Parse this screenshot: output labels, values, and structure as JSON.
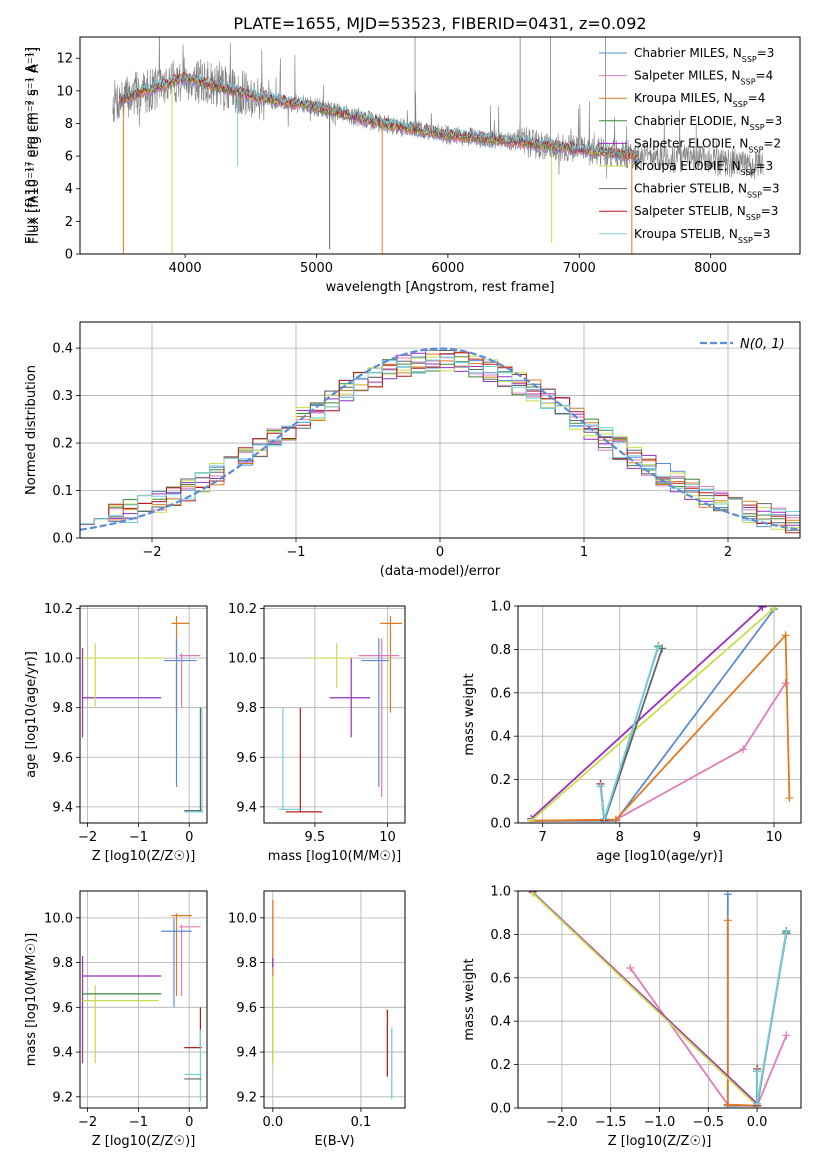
{
  "figure_title": "PLATE=1655, MJD=53523, FIBERID=0431, z=0.092",
  "colors": {
    "Chabrier MILES": "#5b8bd9",
    "Salpeter MILES": "#e17cba",
    "Kroupa MILES": "#e07a1f",
    "Chabrier ELODIE": "#3a8a3a",
    "Salpeter ELODIE": "#9b2fbf",
    "Kroupa ELODIE": "#c9dd4a",
    "Chabrier STELIB": "#666666",
    "Salpeter STELIB": "#b41e1e",
    "Kroupa STELIB": "#72d0de",
    "normal_curve": "#5b8bd9"
  },
  "chart_data": [
    {
      "id": "spectrum",
      "type": "line",
      "title": "PLATE=1655, MJD=53523, FIBERID=0431, z=0.092",
      "xlabel": "wavelength [Angstrom, rest frame]",
      "ylabel": "Flux [fλ10⁻¹⁷ erg cm⁻² s⁻¹ A⁻¹]",
      "xlim": [
        3200,
        8680
      ],
      "ylim": [
        0,
        13.3
      ],
      "xticks": [
        4000,
        5000,
        6000,
        7000,
        8000
      ],
      "yticks": [
        0,
        2,
        4,
        6,
        8,
        10,
        12
      ],
      "grid": false,
      "legend_placement": "upper right",
      "legend": [
        {
          "label": "Chabrier MILES, N",
          "sub": "SSP",
          "suffix": "=3",
          "color": "#5b8bd9"
        },
        {
          "label": "Salpeter MILES, N",
          "sub": "SSP",
          "suffix": "=4",
          "color": "#e17cba"
        },
        {
          "label": "Kroupa MILES, N",
          "sub": "SSP",
          "suffix": "=4",
          "color": "#e07a1f"
        },
        {
          "label": "Chabrier ELODIE, N",
          "sub": "SSP",
          "suffix": "=3",
          "color": "#3a8a3a"
        },
        {
          "label": "Salpeter ELODIE, N",
          "sub": "SSP",
          "suffix": "=2",
          "color": "#9b2fbf"
        },
        {
          "label": "Kroupa ELODIE, N",
          "sub": "SSP",
          "suffix": "=3",
          "color": "#c9dd4a"
        },
        {
          "label": "Chabrier STELIB, N",
          "sub": "SSP",
          "suffix": "=3",
          "color": "#666666"
        },
        {
          "label": "Salpeter STELIB, N",
          "sub": "SSP",
          "suffix": "=3",
          "color": "#b41e1e"
        },
        {
          "label": "Kroupa STELIB, N",
          "sub": "SSP",
          "suffix": "=3",
          "color": "#72d0de"
        }
      ],
      "continuum": [
        [
          3450,
          9.3
        ],
        [
          3700,
          10.0
        ],
        [
          4000,
          10.8
        ],
        [
          4500,
          9.7
        ],
        [
          5000,
          9.0
        ],
        [
          5500,
          8.0
        ],
        [
          6000,
          7.3
        ],
        [
          6500,
          6.9
        ],
        [
          7000,
          6.4
        ],
        [
          7500,
          6.0
        ],
        [
          8000,
          5.7
        ],
        [
          8400,
          5.4
        ]
      ],
      "data_range": [
        3450,
        8400
      ],
      "model_range": [
        3500,
        7450
      ],
      "dips": [
        {
          "x": 3530,
          "y": 0,
          "color": "#e07a1f"
        },
        {
          "x": 3900,
          "y": 0,
          "color": "#c9dd4a"
        },
        {
          "x": 4400,
          "y": 5.4,
          "color": "#72d0de"
        },
        {
          "x": 5100,
          "y": 0.3,
          "color": "#666666"
        },
        {
          "x": 5500,
          "y": 0,
          "color": "#e07a1f"
        },
        {
          "x": 6790,
          "y": 0.7,
          "color": "#c9dd4a"
        },
        {
          "x": 7400,
          "y": 0,
          "color": "#e07a1f"
        }
      ],
      "spikes": [
        {
          "x": 5750,
          "y": 13.3
        },
        {
          "x": 6550,
          "y": 13.3
        },
        {
          "x": 6780,
          "y": 13.3
        },
        {
          "x": 7200,
          "y": 13.3
        }
      ]
    },
    {
      "id": "residuals",
      "type": "histogram",
      "xlabel": "(data-model)/error",
      "ylabel": "Normed distribution",
      "xlim": [
        -2.5,
        2.5
      ],
      "ylim": [
        0,
        0.455
      ],
      "xticks": [
        -2,
        -1,
        0,
        1,
        2
      ],
      "yticks": [
        0.0,
        0.1,
        0.2,
        0.3,
        0.4
      ],
      "grid": true,
      "legend_placement": "upper right",
      "legend_label": "N(0, 1)",
      "bin_width": 0.1,
      "normal": {
        "mean": 0,
        "sigma": 1
      }
    },
    {
      "id": "age-vs-Z",
      "type": "errorbar",
      "xlabel": "Z [log10(Z/Z☉)]",
      "ylabel": "age [log10(age/yr)]",
      "xlim": [
        -2.15,
        0.35
      ],
      "ylim": [
        9.335,
        10.21
      ],
      "xticks": [
        -2,
        -1,
        0
      ],
      "yticks": [
        9.4,
        9.6,
        9.8,
        10.0,
        10.2
      ],
      "grid": true
    },
    {
      "id": "age-vs-mass",
      "type": "errorbar",
      "xlabel": "mass [log10(M/M☉)]",
      "ylabel": "",
      "xlim": [
        9.15,
        10.12
      ],
      "ylim": [
        9.335,
        10.21
      ],
      "xticks": [
        9.5,
        10.0
      ],
      "yticks": [
        9.4,
        9.6,
        9.8,
        10.0,
        10.2
      ],
      "grid": true
    },
    {
      "id": "weight-vs-age",
      "type": "line",
      "xlabel": "age [log10(age/yr)]",
      "ylabel": "mass weight",
      "xlim": [
        6.68,
        10.35
      ],
      "ylim": [
        0,
        1.0
      ],
      "xticks": [
        7,
        8,
        9,
        10
      ],
      "yticks": [
        0.0,
        0.2,
        0.4,
        0.6,
        0.8,
        1.0
      ],
      "grid": true,
      "series": [
        {
          "color": "#5b8bd9",
          "points": [
            [
              6.85,
              0.01
            ],
            [
              7.95,
              0.01
            ],
            [
              10.0,
              0.985
            ]
          ]
        },
        {
          "color": "#e17cba",
          "points": [
            [
              6.85,
              0.01
            ],
            [
              7.95,
              0.015
            ],
            [
              9.6,
              0.34
            ],
            [
              10.15,
              0.645
            ]
          ]
        },
        {
          "color": "#e07a1f",
          "points": [
            [
              6.85,
              0.01
            ],
            [
              7.95,
              0.015
            ],
            [
              10.15,
              0.865
            ],
            [
              10.2,
              0.115
            ]
          ]
        },
        {
          "color": "#3a8a3a",
          "points": [
            [
              7.75,
              0.18
            ],
            [
              7.8,
              0.01
            ],
            [
              8.5,
              0.815
            ]
          ]
        },
        {
          "color": "#9b2fbf",
          "points": [
            [
              6.85,
              0.02
            ],
            [
              9.85,
              0.995
            ]
          ]
        },
        {
          "color": "#c9dd4a",
          "points": [
            [
              6.85,
              0.01
            ],
            [
              10.0,
              0.99
            ]
          ]
        },
        {
          "color": "#666666",
          "points": [
            [
              7.75,
              0.17
            ],
            [
              7.8,
              0.01
            ],
            [
              8.55,
              0.805
            ]
          ]
        },
        {
          "color": "#b41e1e",
          "points": [
            [
              7.75,
              0.18
            ],
            [
              7.8,
              0.01
            ]
          ]
        },
        {
          "color": "#72d0de",
          "points": [
            [
              7.75,
              0.17
            ],
            [
              7.8,
              0.02
            ],
            [
              8.5,
              0.81
            ]
          ]
        }
      ]
    },
    {
      "id": "mass-vs-Z",
      "type": "errorbar",
      "xlabel": "Z [log10(Z/Z☉)]",
      "ylabel": "mass [log10(M/M☉)]",
      "xlim": [
        -2.15,
        0.35
      ],
      "ylim": [
        9.15,
        10.12
      ],
      "xticks": [
        -2,
        -1,
        0
      ],
      "yticks": [
        9.2,
        9.4,
        9.6,
        9.8,
        10.0
      ],
      "grid": true
    },
    {
      "id": "mass-vs-ebv",
      "type": "errorbar",
      "xlabel": "E(B-V)",
      "ylabel": "",
      "xlim": [
        -0.01,
        0.15
      ],
      "ylim": [
        9.15,
        10.12
      ],
      "xticks": [
        0.0,
        0.1
      ],
      "yticks": [
        9.2,
        9.4,
        9.6,
        9.8,
        10.0
      ],
      "grid": true,
      "markers": [
        {
          "x": 0.0,
          "y": 9.72,
          "yerr": 0.36,
          "color": "#e07a1f"
        },
        {
          "x": 0.0,
          "y": 9.8,
          "yerr": 0.02,
          "color": "#9b2fbf"
        },
        {
          "x": 0.0,
          "y": 9.54,
          "yerr": 0.2,
          "color": "#c9dd4a"
        },
        {
          "x": 0.13,
          "y": 9.44,
          "yerr": 0.15,
          "color": "#b41e1e"
        },
        {
          "x": 0.135,
          "y": 9.35,
          "yerr": 0.16,
          "color": "#72d0de"
        }
      ]
    },
    {
      "id": "weight-vs-Z",
      "type": "line",
      "xlabel": "Z [log10(Z/Z☉)]",
      "ylabel": "mass weight",
      "xlim": [
        -2.45,
        0.45
      ],
      "ylim": [
        0,
        1.0
      ],
      "xticks": [
        -2.0,
        -1.5,
        -1.0,
        -0.5,
        0.0
      ],
      "yticks": [
        0.0,
        0.2,
        0.4,
        0.6,
        0.8,
        1.0
      ],
      "grid": true,
      "series": [
        {
          "color": "#5b8bd9",
          "points": [
            [
              -0.3,
              0.985
            ],
            [
              -0.3,
              0.01
            ],
            [
              0.0,
              0.01
            ]
          ]
        },
        {
          "color": "#e17cba",
          "points": [
            [
              -1.3,
              0.645
            ],
            [
              -0.3,
              0.015
            ],
            [
              0.0,
              0.01
            ],
            [
              0.3,
              0.335
            ]
          ]
        },
        {
          "color": "#e07a1f",
          "points": [
            [
              -0.3,
              0.865
            ],
            [
              -0.3,
              0.015
            ],
            [
              0.0,
              0.01
            ]
          ]
        },
        {
          "color": "#3a8a3a",
          "points": [
            [
              0.0,
              0.18
            ],
            [
              0.0,
              0.01
            ],
            [
              0.3,
              0.815
            ]
          ]
        },
        {
          "color": "#9b2fbf",
          "points": [
            [
              -2.3,
              0.995
            ],
            [
              0.0,
              0.02
            ]
          ]
        },
        {
          "color": "#c9dd4a",
          "points": [
            [
              -2.3,
              0.99
            ],
            [
              0.0,
              0.01
            ]
          ]
        },
        {
          "color": "#666666",
          "points": [
            [
              0.0,
              0.17
            ],
            [
              0.0,
              0.01
            ],
            [
              0.3,
              0.805
            ]
          ]
        },
        {
          "color": "#b41e1e",
          "points": [
            [
              0.0,
              0.18
            ],
            [
              0.0,
              0.01
            ]
          ]
        },
        {
          "color": "#72d0de",
          "points": [
            [
              0.0,
              0.17
            ],
            [
              0.0,
              0.02
            ],
            [
              0.3,
              0.81
            ]
          ]
        }
      ]
    }
  ]
}
